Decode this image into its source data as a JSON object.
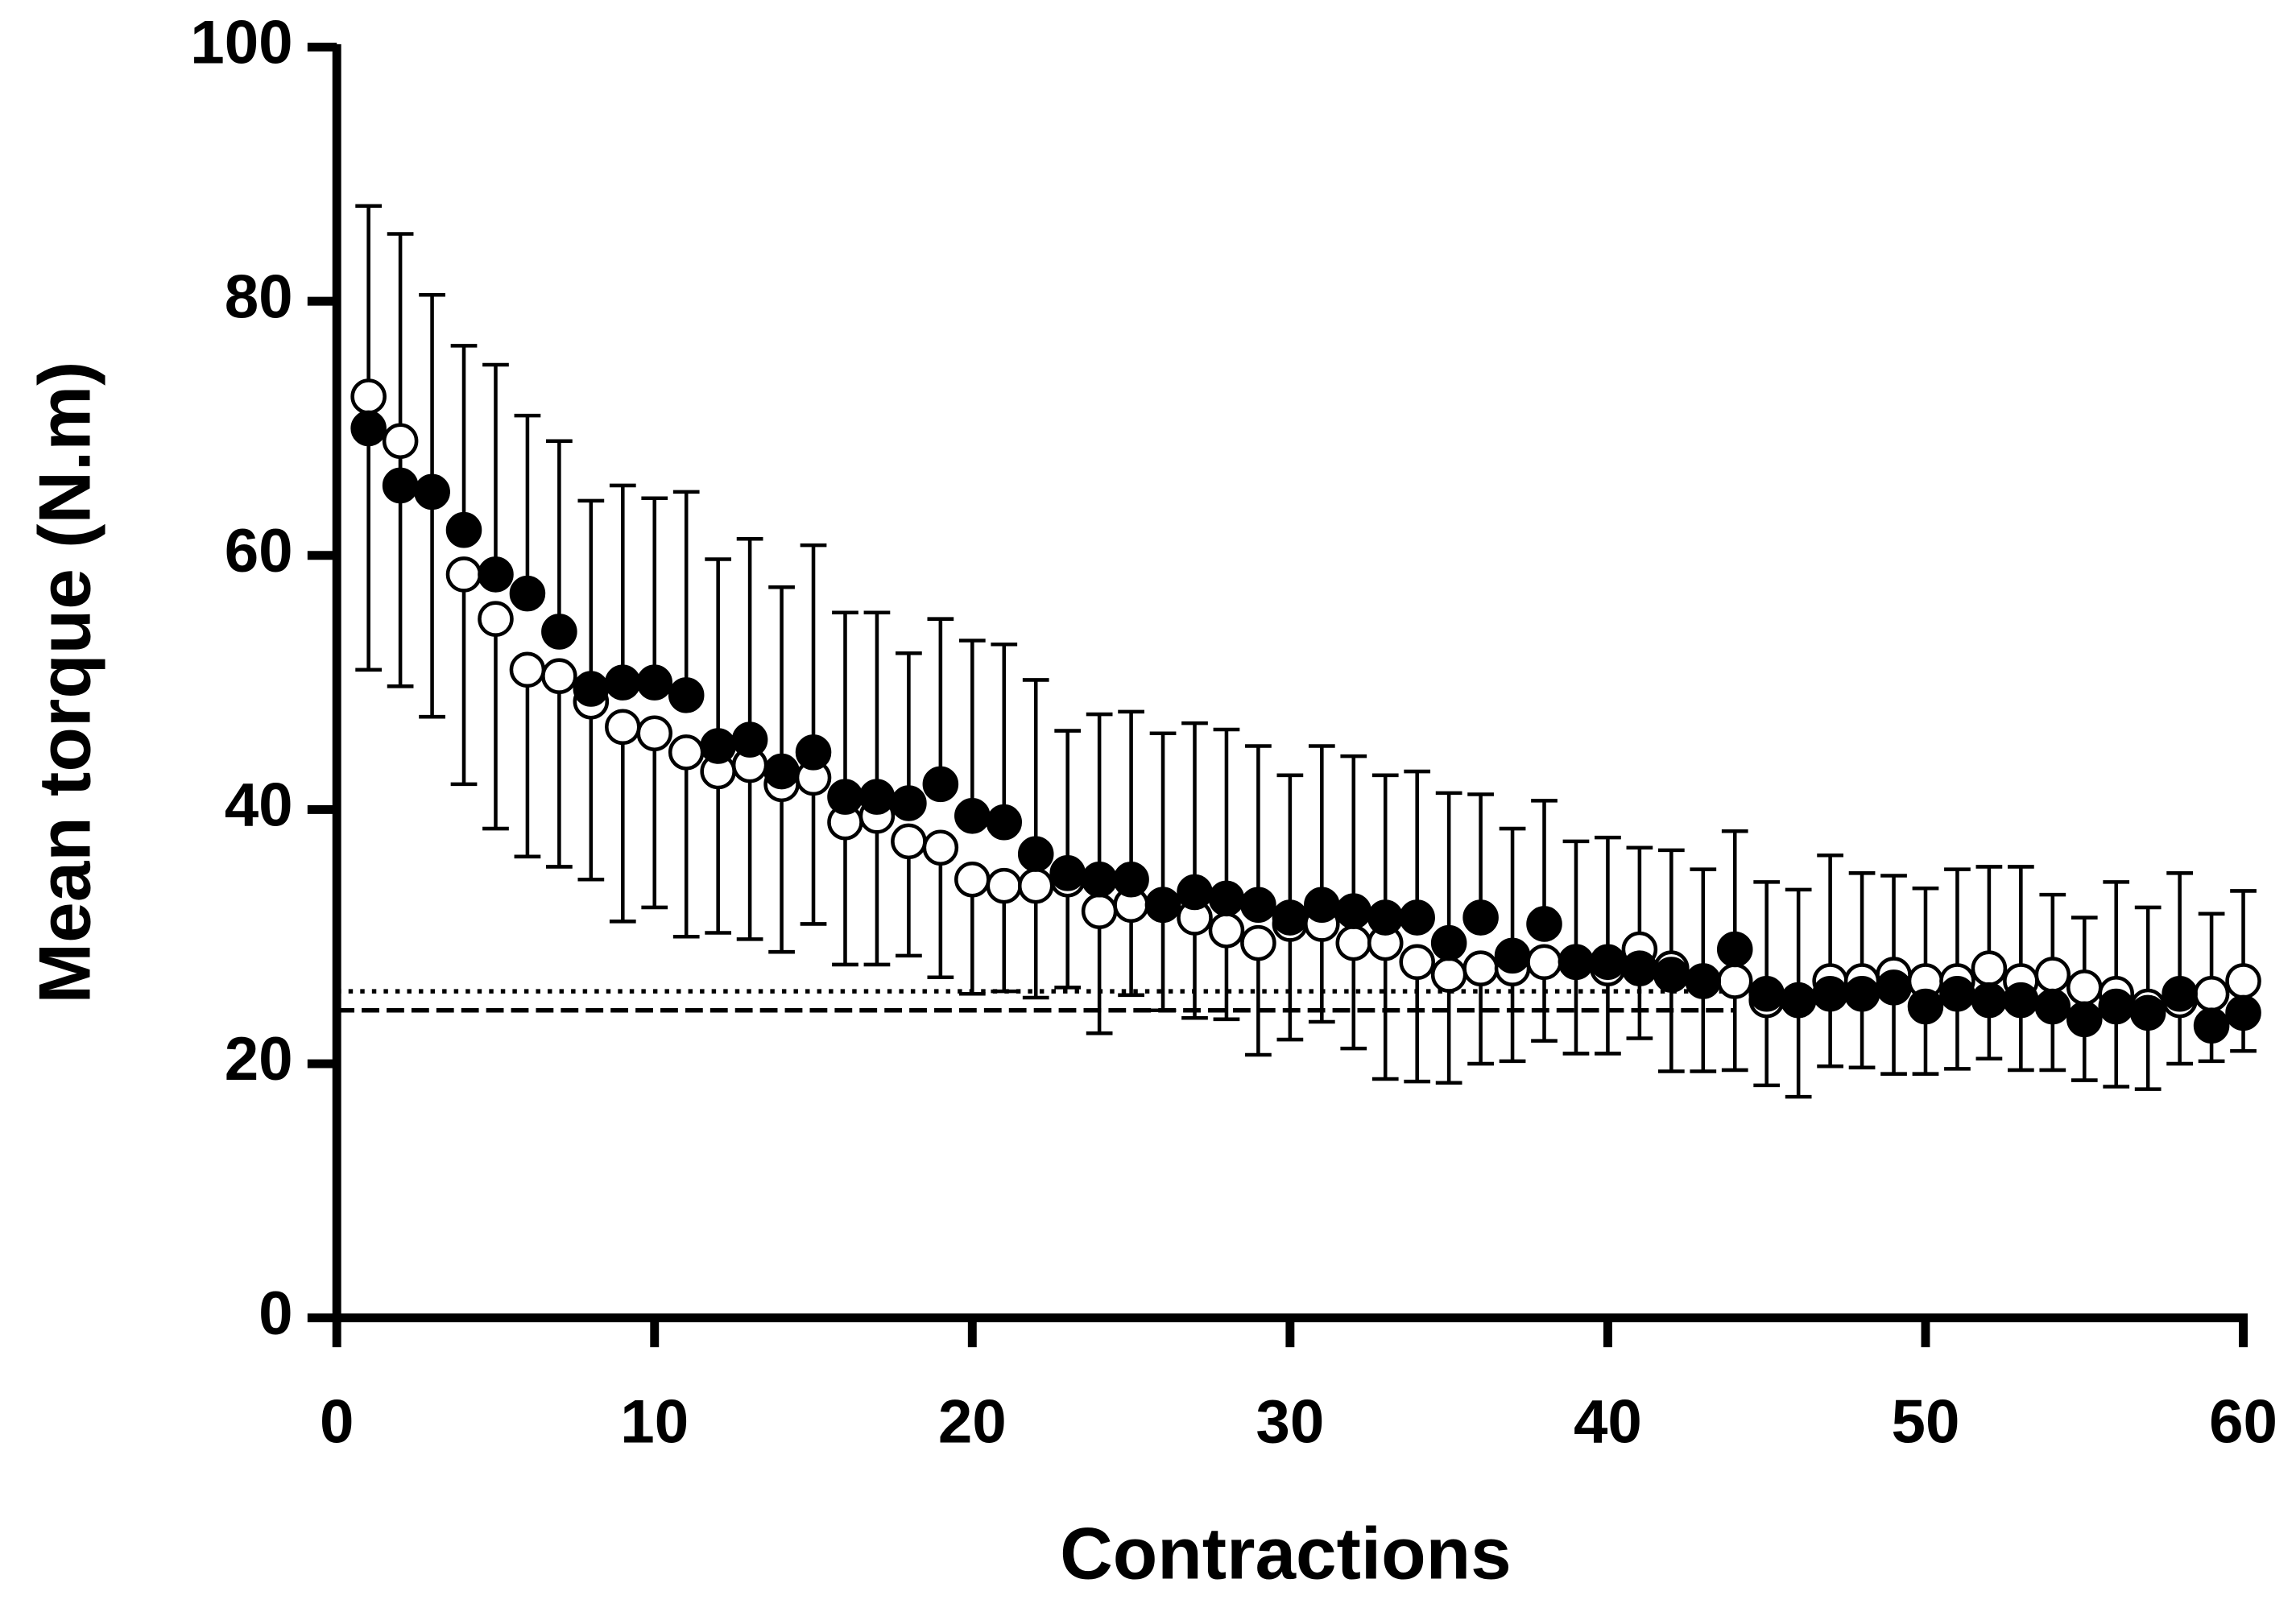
{
  "chart_data": {
    "type": "scatter",
    "xlabel": "Contractions",
    "ylabel": "Mean torque (N.m)",
    "xlim": [
      0,
      60
    ],
    "xticks": [
      0,
      10,
      20,
      30,
      40,
      50,
      60
    ],
    "ylim": [
      0,
      100
    ],
    "yticks": [
      0,
      20,
      40,
      60,
      80,
      100
    ],
    "x": [
      1,
      2,
      3,
      4,
      5,
      6,
      7,
      8,
      9,
      10,
      11,
      12,
      13,
      14,
      15,
      16,
      17,
      18,
      19,
      20,
      21,
      22,
      23,
      24,
      25,
      26,
      27,
      28,
      29,
      30,
      31,
      32,
      33,
      34,
      35,
      36,
      37,
      38,
      39,
      40,
      41,
      42,
      43,
      44,
      45,
      46,
      47,
      48,
      49,
      50,
      51,
      52,
      53,
      54,
      55,
      56,
      57,
      58,
      59,
      60
    ],
    "series": [
      {
        "color": "#000000",
        "fill": "#ffffff",
        "error_direction": "down",
        "values": [
          72.5,
          69,
          65,
          58.5,
          55,
          51,
          50.5,
          48.5,
          46.5,
          46,
          44.5,
          43,
          43.5,
          42,
          42.5,
          39,
          39.5,
          37.5,
          37,
          34.5,
          34,
          34,
          34.5,
          32,
          32.5,
          32.5,
          31.5,
          30.5,
          29.5,
          31,
          31,
          29.5,
          29.5,
          28,
          27,
          27.5,
          27.5,
          28,
          28,
          27.5,
          29,
          27.5,
          26.5,
          26.5,
          25,
          25,
          26.5,
          26.5,
          27,
          26.5,
          26.5,
          27.5,
          26.5,
          27,
          26,
          25.5,
          24.5,
          25,
          25.5,
          26.5
        ],
        "errors": [
          21.5,
          19.3,
          17.7,
          16.5,
          16.5,
          14.7,
          15,
          14,
          15.3,
          13.7,
          14.5,
          12.7,
          13.7,
          13.2,
          11.5,
          11.2,
          11.7,
          9,
          10.2,
          9,
          8.3,
          8.8,
          8.5,
          9.6,
          7.1,
          8.3,
          7.9,
          7,
          8.8,
          9.1,
          7.7,
          8.3,
          10.7,
          9.4,
          8.5,
          7.5,
          7.3,
          6.2,
          7.2,
          6.7,
          7,
          8.1,
          7.1,
          7,
          6.7,
          7.6,
          6.7,
          6.8,
          7.8,
          7.3,
          6.9,
          7.1,
          7,
          7.5,
          7.3,
          7.3,
          6.5,
          5,
          5.3,
          5.5
        ]
      },
      {
        "color": "#000000",
        "fill": "#000000",
        "error_direction": "up",
        "values": [
          70,
          65.5,
          65,
          62,
          58.5,
          57,
          54,
          49.5,
          50,
          50,
          49,
          45,
          45.5,
          43,
          44.5,
          41,
          41,
          40.5,
          42,
          39.5,
          39,
          36.5,
          35,
          34.5,
          34.5,
          32.5,
          33.5,
          33,
          32.5,
          31.5,
          32.5,
          32,
          31.5,
          31.5,
          29.5,
          31.5,
          28.5,
          31,
          28,
          28,
          27.5,
          27,
          26.5,
          29,
          25.5,
          25,
          25.5,
          25.5,
          26,
          24.5,
          25.5,
          25,
          25,
          24.5,
          23.5,
          24.5,
          24,
          25.5,
          23,
          24
        ],
        "errors": [
          17.5,
          19.8,
          15.5,
          14.5,
          16.5,
          14,
          15,
          14.8,
          15.5,
          14.5,
          16,
          14.7,
          15.8,
          14.5,
          16.3,
          14.5,
          14.5,
          11.8,
          13,
          13.8,
          14,
          13.7,
          11.2,
          13,
          13.2,
          13.5,
          13.3,
          13.3,
          12.5,
          11.2,
          12.5,
          12.2,
          11.2,
          11.5,
          11.8,
          9.7,
          10,
          9.7,
          9.5,
          9.8,
          9.5,
          9.8,
          8.8,
          9.3,
          8.8,
          8.7,
          10.9,
          9.5,
          8.8,
          9.3,
          9.8,
          10.5,
          10.5,
          8.8,
          8,
          9.8,
          8.3,
          9.5,
          8.8,
          9.6
        ]
      }
    ],
    "reference_lines": [
      {
        "value": 25.7,
        "style": "dotted",
        "xmax": 44
      },
      {
        "value": 24.2,
        "style": "dashed",
        "xmax": 44
      }
    ]
  }
}
